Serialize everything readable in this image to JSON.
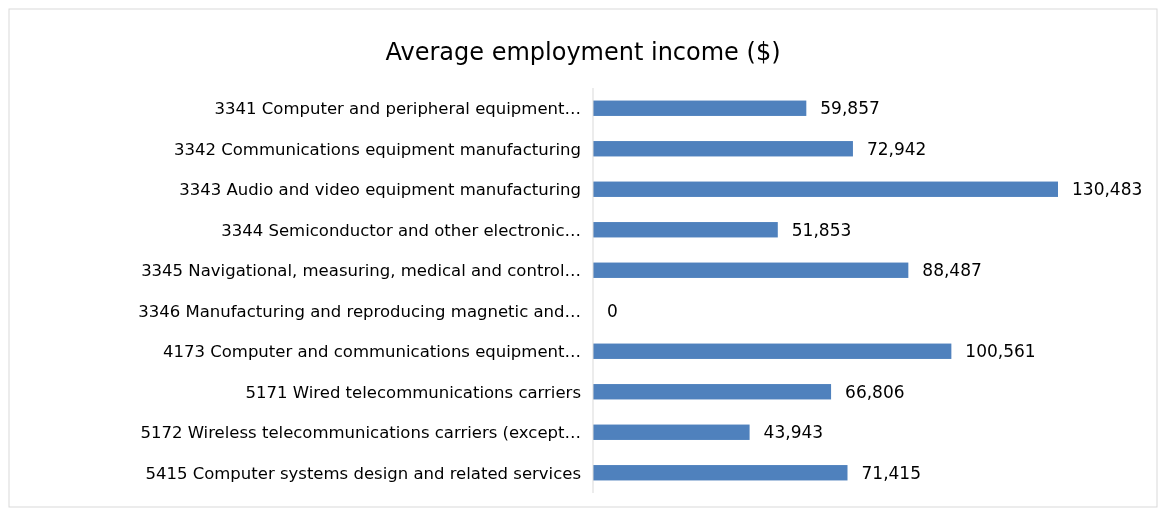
{
  "chart_data": {
    "type": "bar",
    "orientation": "horizontal",
    "title": "Average employment income ($)",
    "categories": [
      "3341 Computer and peripheral equipment…",
      "3342 Communications equipment manufacturing",
      "3343 Audio and video equipment manufacturing",
      "3344 Semiconductor and other electronic…",
      "3345 Navigational, measuring, medical and control…",
      "3346 Manufacturing and reproducing magnetic and…",
      "4173 Computer and communications equipment…",
      "5171 Wired telecommunications carriers",
      "5172 Wireless telecommunications carriers (except…",
      "5415 Computer systems design and related services"
    ],
    "values": [
      59857,
      72942,
      130483,
      51853,
      88487,
      0,
      100561,
      66806,
      43943,
      71415
    ],
    "value_labels": [
      "59,857",
      "72,942",
      "130,483",
      "51,853",
      "88,487",
      "0",
      "100,561",
      "66,806",
      "43,943",
      "71,415"
    ],
    "color": "#4f81bd",
    "grid": false
  }
}
